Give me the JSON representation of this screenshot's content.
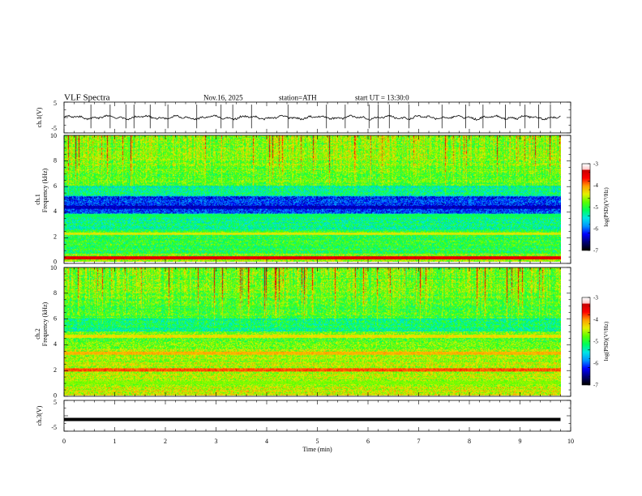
{
  "header": {
    "title": "VLF  Spectra",
    "date": "Nov.16, 2025",
    "station": "station=ATH",
    "start": "start  UT  =   13:30:0"
  },
  "colors": {
    "trace": "#000000",
    "colormap": [
      "#000000",
      "#00007a",
      "#0000ff",
      "#0096ff",
      "#00e6e6",
      "#00ff5a",
      "#5aff00",
      "#e6f000",
      "#ffa000",
      "#ff0000",
      "#c80000",
      "#ffffff"
    ]
  },
  "chart_data": [
    {
      "type": "line",
      "id": "ch1-trace",
      "ylabel": "ch.1(V)",
      "ylim": [
        -5,
        5
      ],
      "yticks": [
        "5",
        "-5"
      ],
      "xlim": [
        0,
        10
      ],
      "x_end": 9.8,
      "baseline": 0,
      "spikes": [
        0.53,
        0.91,
        1.22,
        1.38,
        1.7,
        2.05,
        2.62,
        3.1,
        3.33,
        3.7,
        4.42,
        5.18,
        5.55,
        6.02,
        6.2,
        6.42,
        6.81,
        7.46,
        7.93,
        8.27,
        8.71,
        9.1,
        9.37,
        9.6
      ]
    },
    {
      "type": "heatmap",
      "id": "ch1-spectrogram",
      "ylabel": "ch.1\nFrequency (kHz)",
      "ylim": [
        0,
        10
      ],
      "yticks": [
        "0",
        "2",
        "4",
        "6",
        "8",
        "10"
      ],
      "xlim": [
        0,
        10
      ],
      "x_end": 9.8,
      "colorbar": {
        "label": "log(PSD)(V²/Hz)",
        "range": [
          -7,
          -3
        ],
        "ticks": [
          "-3",
          "-4",
          "-5",
          "-6",
          "-7"
        ]
      },
      "bands": [
        {
          "freq_khz": 2.2,
          "level": -4.2
        },
        {
          "freq_khz": 3.6,
          "level": -5.0
        },
        {
          "freq_khz": 4.3,
          "level": -6.4
        },
        {
          "freq_khz": 0.3,
          "level": -3.2
        }
      ]
    },
    {
      "type": "heatmap",
      "id": "ch2-spectrogram",
      "ylabel": "ch.2\nFrequency (kHz)",
      "ylim": [
        0,
        10
      ],
      "yticks": [
        "0",
        "2",
        "4",
        "6",
        "8",
        "10"
      ],
      "xlim": [
        0,
        10
      ],
      "x_end": 9.8,
      "colorbar": {
        "label": "log(PSD)(V²/Hz)",
        "range": [
          -7,
          -3
        ],
        "ticks": [
          "-3",
          "-4",
          "-5",
          "-6",
          "-7"
        ]
      },
      "bands": [
        {
          "freq_khz": 2.0,
          "level": -3.6
        },
        {
          "freq_khz": 3.3,
          "level": -3.9
        },
        {
          "freq_khz": 4.6,
          "level": -4.1
        },
        {
          "freq_khz": 1.0,
          "level": -4.5
        }
      ]
    },
    {
      "type": "line",
      "id": "ch3-trace",
      "ylabel": "ch.3(V)",
      "ylim": [
        -5,
        5
      ],
      "yticks": [
        "5",
        "-5"
      ],
      "xlim": [
        0,
        10
      ],
      "x_end": 9.8,
      "baseline": -1.2
    }
  ],
  "xaxis": {
    "label": "Time  (min)",
    "ticks": [
      "0",
      "1",
      "2",
      "3",
      "4",
      "5",
      "6",
      "7",
      "8",
      "9",
      "10"
    ]
  }
}
